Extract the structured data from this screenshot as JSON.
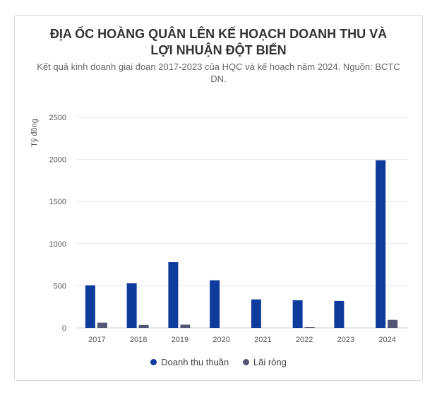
{
  "chart_data": {
    "type": "bar",
    "title": "ĐỊA ỐC HOÀNG QUÂN LÊN KẾ HOẠCH DOANH THU VÀ LỢI NHUẬN ĐỘT BIẾN",
    "subtitle": "Kết quả kinh doanh giai đoạn 2017-2023 của HQC và kế hoạch năm 2024. Nguồn: BCTC DN.",
    "ylabel": "Tỷ đồng",
    "xlabel": "",
    "ylim": [
      0,
      2500
    ],
    "yticks": [
      "0",
      "500",
      "1000",
      "1500",
      "2000",
      "2500"
    ],
    "categories": [
      "2017",
      "2018",
      "2019",
      "2020",
      "2021",
      "2022",
      "2023",
      "2024"
    ],
    "series": [
      {
        "name": "Doanh thu thuần",
        "color": "#0f3c9c",
        "values": [
          505,
          530,
          780,
          565,
          338,
          328,
          320,
          1990
        ]
      },
      {
        "name": "Lãi ròng",
        "color": "#545475",
        "values": [
          62,
          35,
          38,
          0,
          0,
          8,
          0,
          95
        ]
      }
    ],
    "grid": true,
    "legend_position": "bottom"
  }
}
